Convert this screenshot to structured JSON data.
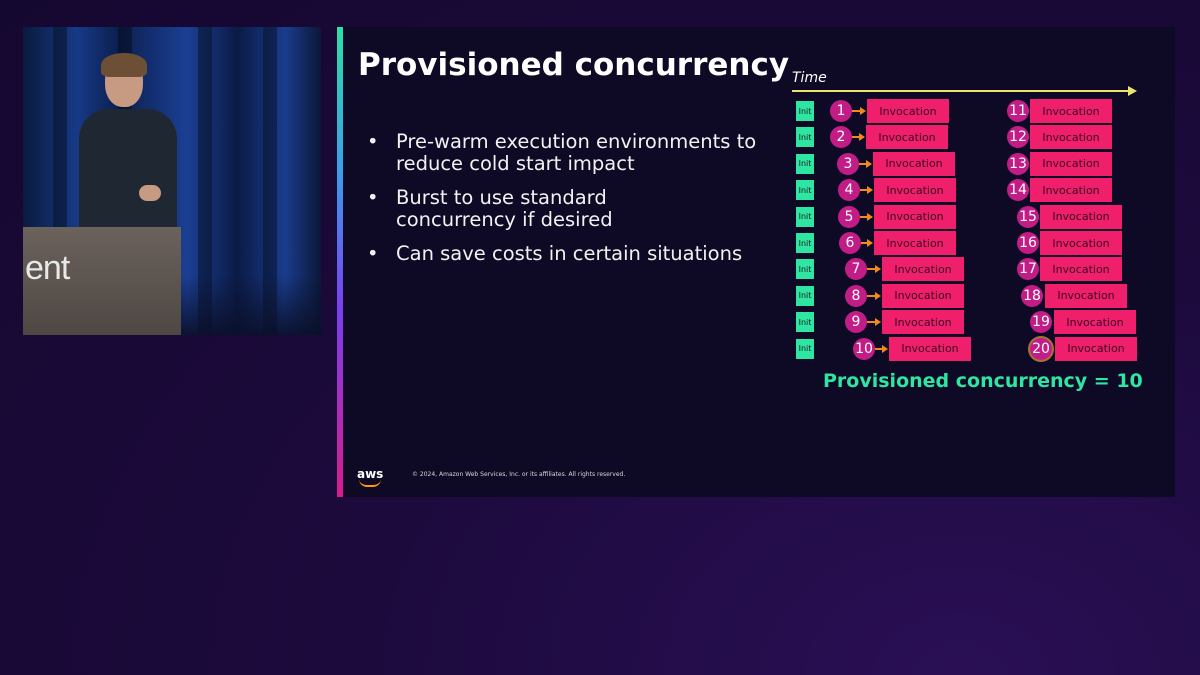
{
  "video": {
    "podium_text": "ent"
  },
  "slide": {
    "title": "Provisioned concurrency",
    "bullets": [
      "Pre-warm execution environments to reduce cold start impact",
      "Burst to use standard concurrency if desired",
      "Can save costs in certain situations"
    ],
    "footer": {
      "logo_text": "aws",
      "copyright": "© 2024, Amazon Web Services, Inc. or its affiliates. All rights reserved."
    }
  },
  "diagram": {
    "time_label": "Time",
    "init_label": "Init",
    "invocation_label": "Invocation",
    "left_column": [
      "1",
      "2",
      "3",
      "4",
      "5",
      "6",
      "7",
      "8",
      "9",
      "10"
    ],
    "right_column": [
      "11",
      "12",
      "13",
      "14",
      "15",
      "16",
      "17",
      "18",
      "19",
      "20"
    ],
    "caption": "Provisioned concurrency = 10",
    "colors": {
      "init": "#2ee6a2",
      "invocation": "#ef1f6b",
      "circle": "#c21d86",
      "arrow": "#f08a1c",
      "timeline": "#e8e56a"
    }
  }
}
